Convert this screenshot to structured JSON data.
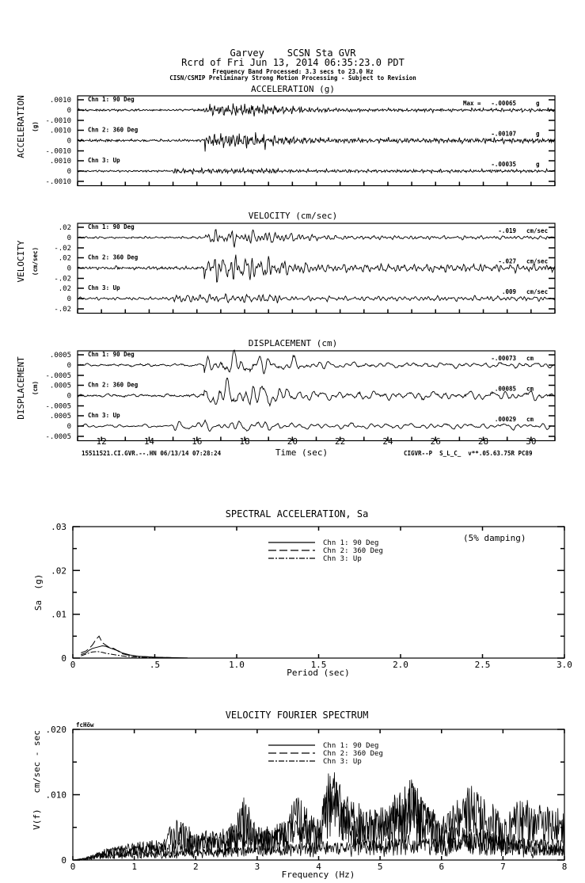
{
  "header": {
    "station_line": "Garvey    SCSN Sta GVR",
    "record_line": "Rcrd of Fri Jun 13, 2014 06:35:23.0 PDT",
    "band_line": "Frequency Band Processed: 3.3 secs to 23.0 Hz",
    "disclaimer_line": "CISN/CSMIP Preliminary Strong Motion Processing - Subject to Revision"
  },
  "footer": {
    "left": "15511521.CI.GVR.--.HN 06/13/14 07:28:24",
    "right": "CIGVR--P  S_L_C_  v**.05.63.75R PC89"
  },
  "chart_data": [
    {
      "type": "line",
      "title": "ACCELERATION (g)",
      "ylabel": "ACCELERATION",
      "yunit": "(g)",
      "xlabel": "Time (sec)",
      "xlim": [
        11,
        31
      ],
      "xticks": [
        "12",
        "14",
        "16",
        "18",
        "20",
        "22",
        "24",
        "26",
        "28",
        "30"
      ],
      "ylim": [
        -0.001,
        0.001
      ],
      "yticks": [
        ".0010",
        "0",
        "-.0010"
      ],
      "max_prefix": "Max =",
      "series": [
        {
          "name": "Chn 1: 90 Deg",
          "max": "-.00065",
          "unit": "g",
          "peak": -0.00065
        },
        {
          "name": "Chn 2: 360 Deg",
          "max": "-.00107",
          "unit": "g",
          "peak": -0.00107
        },
        {
          "name": "Chn 3: Up",
          "max": "-.00035",
          "unit": "g",
          "peak": -0.00035
        }
      ]
    },
    {
      "type": "line",
      "title": "VELOCITY (cm/sec)",
      "ylabel": "VELOCITY",
      "yunit": "(cm/sec)",
      "xlim": [
        11,
        31
      ],
      "ylim": [
        -0.02,
        0.02
      ],
      "yticks": [
        ".02",
        "0",
        "-.02"
      ],
      "series": [
        {
          "name": "Chn 1: 90 Deg",
          "max": "-.019",
          "unit": "cm/sec",
          "peak": -0.019
        },
        {
          "name": "Chn 2: 360 Deg",
          "max": "-.027",
          "unit": "cm/sec",
          "peak": -0.027
        },
        {
          "name": "Chn 3: Up",
          "max": ".009",
          "unit": "cm/sec",
          "peak": 0.009
        }
      ]
    },
    {
      "type": "line",
      "title": "DISPLACEMENT (cm)",
      "ylabel": "DISPLACEMENT",
      "yunit": "(cm)",
      "xlim": [
        11,
        31
      ],
      "ylim": [
        -0.0005,
        0.0005
      ],
      "yticks": [
        ".0005",
        "0",
        "-.0005"
      ],
      "series": [
        {
          "name": "Chn 1: 90 Deg",
          "max": "-.00073",
          "unit": "cm",
          "peak": -0.00073
        },
        {
          "name": "Chn 2: 360 Deg",
          "max": ".00085",
          "unit": "cm",
          "peak": 0.00085
        },
        {
          "name": "Chn 3: Up",
          "max": ".00029",
          "unit": "cm",
          "peak": 0.00029
        }
      ]
    },
    {
      "type": "line",
      "title": "SPECTRAL ACCELERATION, Sa",
      "xlabel": "Period (sec)",
      "ylabel": "Sa  (g)",
      "annotation": "(5% damping)",
      "xlim": [
        0,
        3.0
      ],
      "ylim": [
        0,
        0.03
      ],
      "xticks": [
        "0",
        ".5",
        "1.0",
        "1.5",
        "2.0",
        "2.5",
        "3.0"
      ],
      "yticks": [
        ".03",
        ".02",
        ".01",
        "0"
      ],
      "legend": "top-center",
      "series": [
        {
          "name": "Chn 1: 90 Deg",
          "style": "solid",
          "x": [
            0.05,
            0.08,
            0.1,
            0.12,
            0.15,
            0.18,
            0.2,
            0.22,
            0.25,
            0.28,
            0.3,
            0.35,
            0.4,
            0.45,
            0.5,
            0.6,
            0.7
          ],
          "y": [
            0.0008,
            0.0012,
            0.0018,
            0.0022,
            0.0025,
            0.0028,
            0.0027,
            0.0024,
            0.002,
            0.0016,
            0.0012,
            0.0007,
            0.0004,
            0.0003,
            0.0002,
            0.0001,
            5e-05
          ]
        },
        {
          "name": "Chn 2: 360 Deg",
          "style": "dashed",
          "x": [
            0.05,
            0.08,
            0.1,
            0.12,
            0.14,
            0.16,
            0.18,
            0.2,
            0.22,
            0.25,
            0.28,
            0.3,
            0.35,
            0.4,
            0.5,
            0.6
          ],
          "y": [
            0.0012,
            0.0016,
            0.0022,
            0.003,
            0.0042,
            0.005,
            0.0035,
            0.003,
            0.0025,
            0.0022,
            0.0015,
            0.001,
            0.0006,
            0.0004,
            0.0002,
            0.0001
          ]
        },
        {
          "name": "Chn 3: Up",
          "style": "dash-dot",
          "x": [
            0.05,
            0.08,
            0.1,
            0.12,
            0.15,
            0.18,
            0.2,
            0.25,
            0.3,
            0.35,
            0.4,
            0.5
          ],
          "y": [
            0.0005,
            0.0009,
            0.0012,
            0.0014,
            0.0015,
            0.0013,
            0.0011,
            0.0008,
            0.0005,
            0.0003,
            0.0002,
            0.0001
          ]
        }
      ]
    },
    {
      "type": "line",
      "title": "VELOCITY FOURIER SPECTRUM",
      "corner_label": "fcHöw",
      "xlabel": "Frequency (Hz)",
      "ylabel": "V(f)   cm/sec - sec",
      "xlim": [
        0,
        8
      ],
      "ylim": [
        0,
        0.02
      ],
      "xticks": [
        "0",
        "1",
        "2",
        "3",
        "4",
        "5",
        "6",
        "7",
        "8"
      ],
      "yticks": [
        ".020",
        ".010",
        "0"
      ],
      "legend": "top-center",
      "series": [
        {
          "name": "Chn 1: 90 Deg",
          "style": "solid",
          "x": [
            0,
            0.2,
            0.5,
            1,
            1.5,
            2,
            2.5,
            2.8,
            3,
            3.5,
            3.6,
            4,
            4.2,
            4.5,
            5,
            5.5,
            6,
            6.5,
            7,
            7.5,
            8
          ],
          "y": [
            0,
            0.0003,
            0.0015,
            0.002,
            0.0025,
            0.0035,
            0.004,
            0.0095,
            0.004,
            0.005,
            0.0098,
            0.005,
            0.0143,
            0.007,
            0.006,
            0.0115,
            0.005,
            0.0045,
            0.004,
            0.003,
            0.003
          ]
        },
        {
          "name": "Chn 2: 360 Deg",
          "style": "dashed",
          "x": [
            0,
            0.2,
            0.5,
            1,
            1.5,
            1.65,
            2,
            2.5,
            3,
            3.5,
            4,
            4.2,
            4.5,
            5,
            5.5,
            6,
            6.5,
            6.6,
            7,
            7.3,
            7.5,
            8
          ],
          "y": [
            0,
            0.0003,
            0.0015,
            0.0025,
            0.003,
            0.0062,
            0.004,
            0.0045,
            0.0045,
            0.0055,
            0.006,
            0.0125,
            0.0085,
            0.0075,
            0.011,
            0.006,
            0.0108,
            0.0113,
            0.006,
            0.009,
            0.0082,
            0.007
          ]
        },
        {
          "name": "Chn 3: Up",
          "style": "dash-dot",
          "x": [
            0,
            0.2,
            0.5,
            1,
            2,
            3,
            4,
            4.5,
            5,
            5.5,
            6,
            6.5,
            7,
            7.5,
            8
          ],
          "y": [
            0,
            0.0002,
            0.001,
            0.0012,
            0.0015,
            0.002,
            0.0025,
            0.003,
            0.003,
            0.0035,
            0.003,
            0.004,
            0.003,
            0.002,
            0.002
          ]
        }
      ]
    }
  ]
}
